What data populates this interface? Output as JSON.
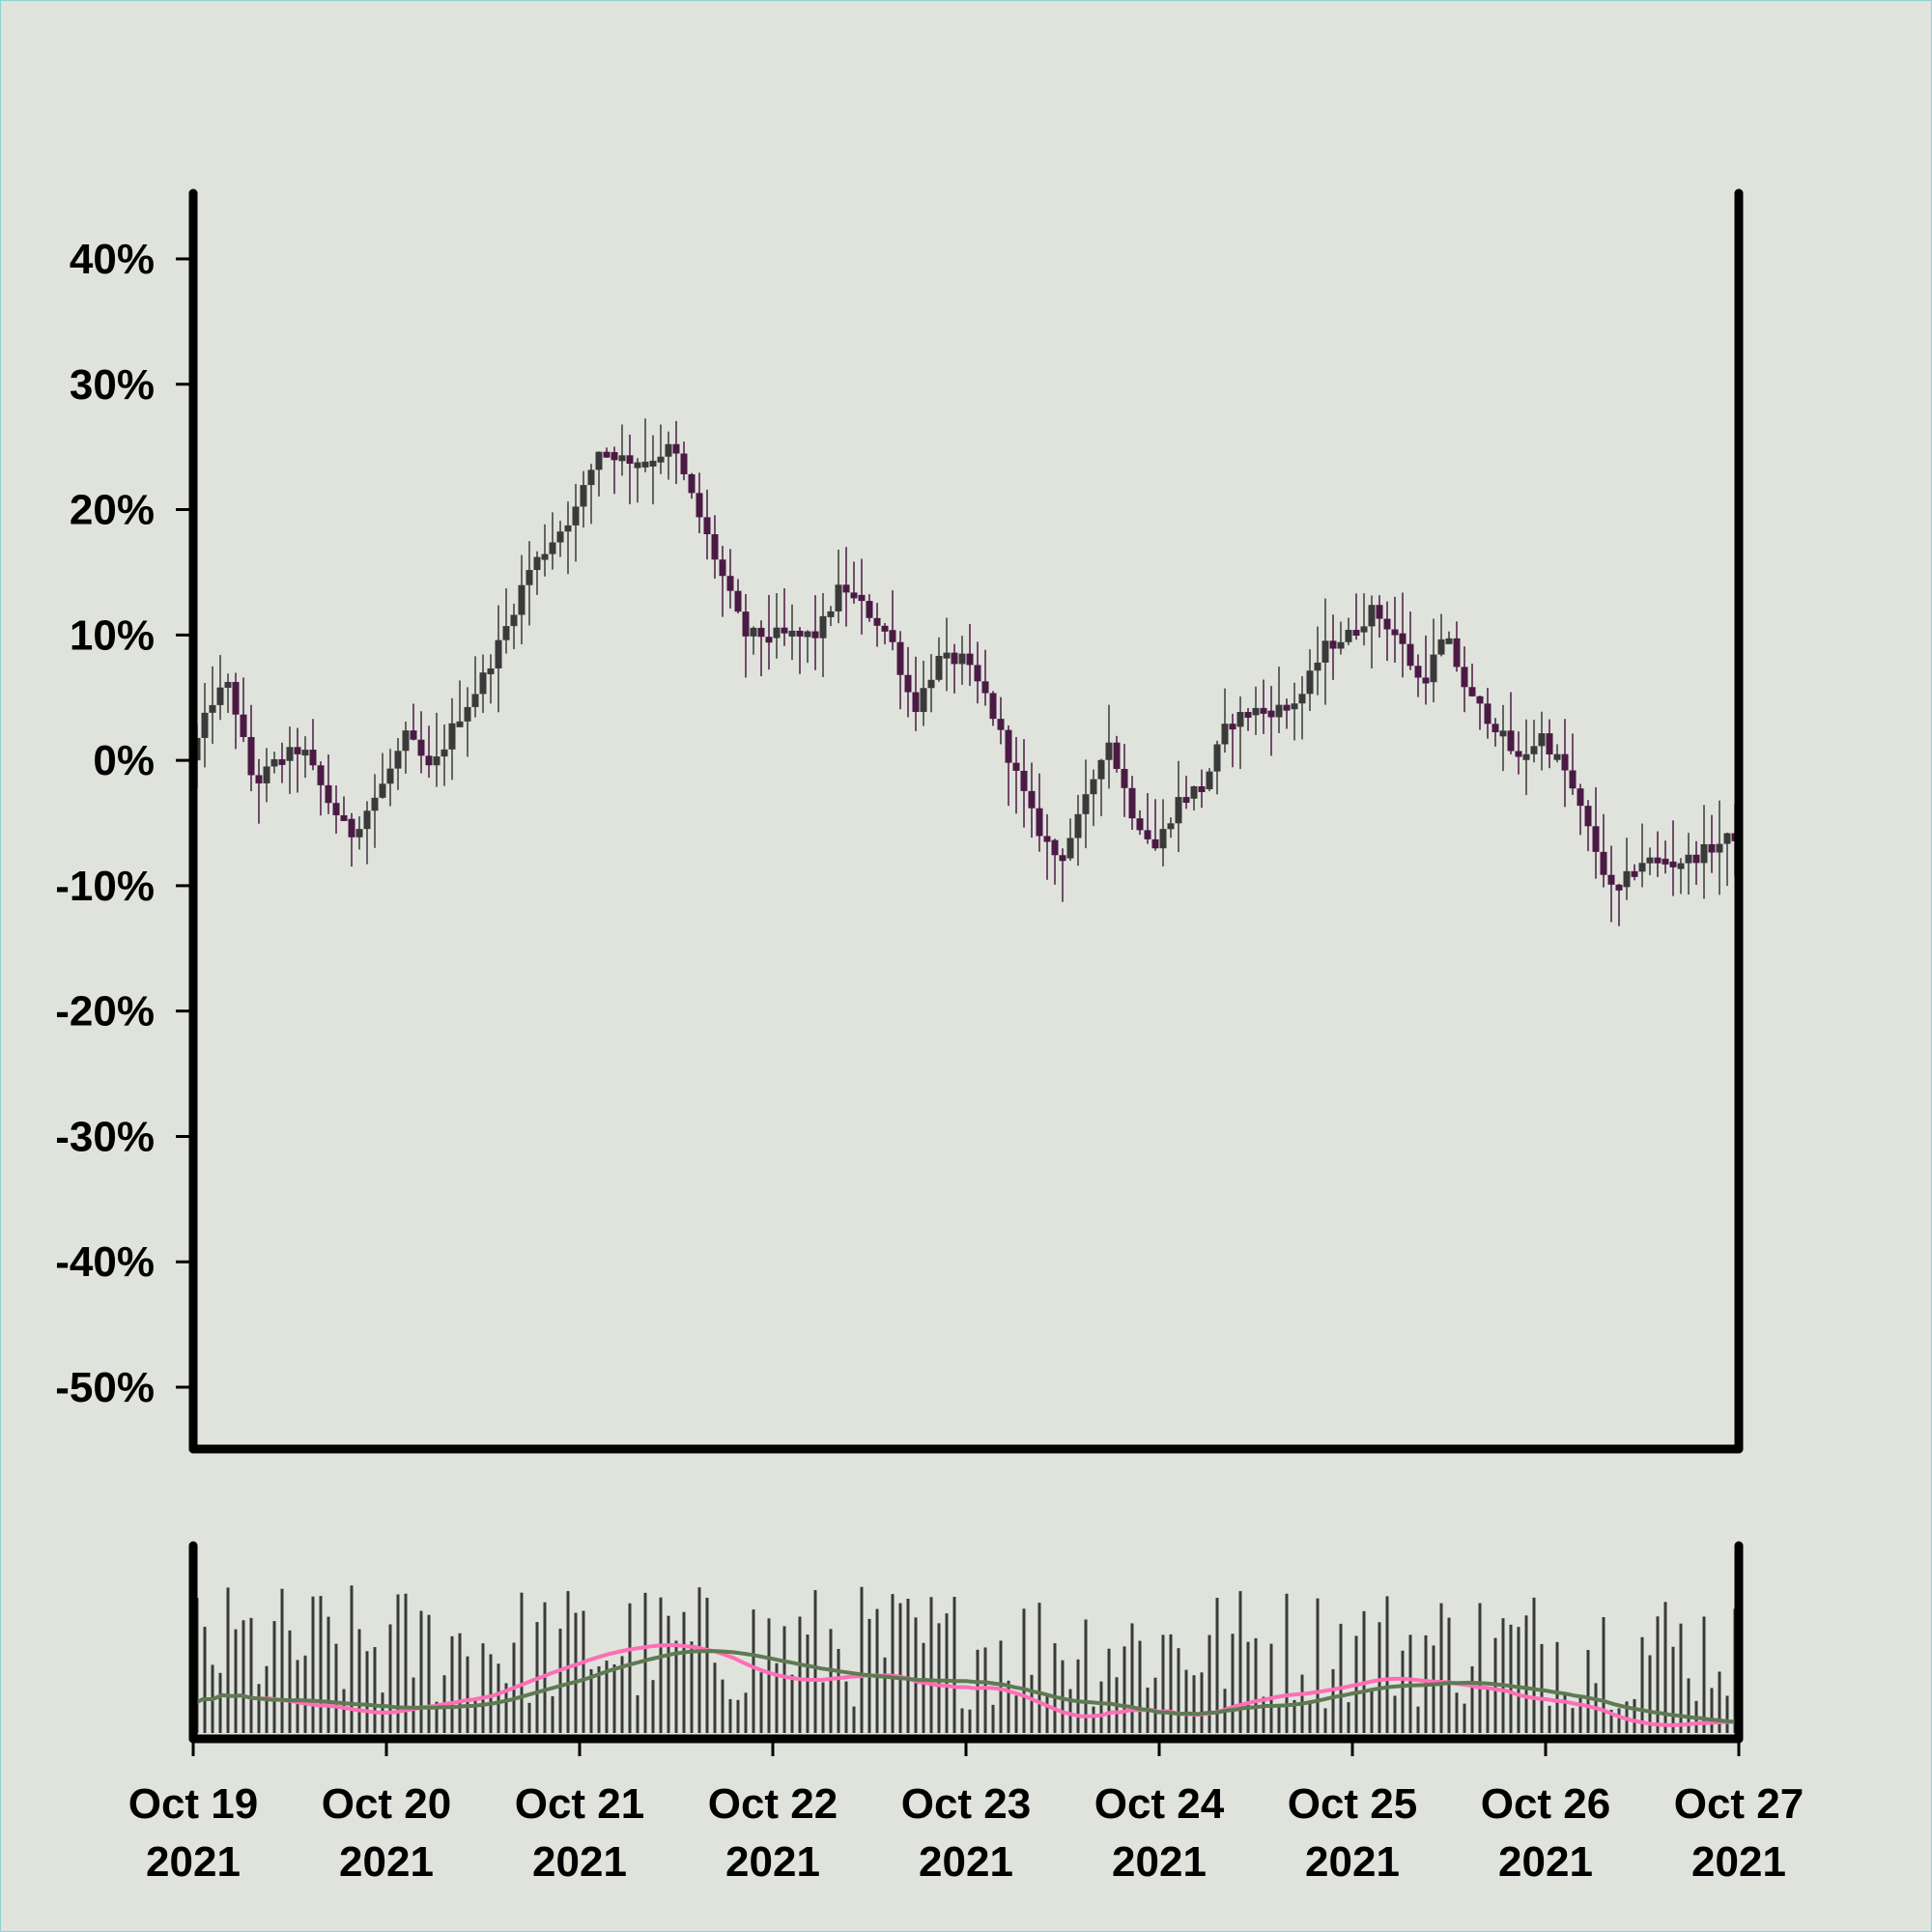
{
  "chart_data": {
    "type": "candlestick",
    "title": "",
    "xlabel": "",
    "ylabel": "",
    "ylim": [
      -55,
      40
    ],
    "y_ticks": [
      40,
      30,
      20,
      10,
      0,
      -10,
      -20,
      -30,
      -40,
      -50
    ],
    "y_tick_labels": [
      "40%",
      "30%",
      "20%",
      "10%",
      "0%",
      "-10%",
      "-20%",
      "-30%",
      "-40%",
      "-50%"
    ],
    "x_range": [
      "2021-10-19",
      "2021-10-27"
    ],
    "x_ticks": [
      {
        "date": "2021-10-19",
        "line1": "Oct 19",
        "line2": "2021"
      },
      {
        "date": "2021-10-20",
        "line1": "Oct 20",
        "line2": "2021"
      },
      {
        "date": "2021-10-21",
        "line1": "Oct 21",
        "line2": "2021"
      },
      {
        "date": "2021-10-22",
        "line1": "Oct 22",
        "line2": "2021"
      },
      {
        "date": "2021-10-23",
        "line1": "Oct 23",
        "line2": "2021"
      },
      {
        "date": "2021-10-24",
        "line1": "Oct 24",
        "line2": "2021"
      },
      {
        "date": "2021-10-25",
        "line1": "Oct 25",
        "line2": "2021"
      },
      {
        "date": "2021-10-26",
        "line1": "Oct 26",
        "line2": "2021"
      },
      {
        "date": "2021-10-27",
        "line1": "Oct 27",
        "line2": "2021"
      }
    ],
    "price_path": [
      [
        "2021-10-19 00:00",
        0
      ],
      [
        "2021-10-19 03:00",
        5
      ],
      [
        "2021-10-19 05:00",
        6
      ],
      [
        "2021-10-19 08:00",
        -2
      ],
      [
        "2021-10-19 11:00",
        0
      ],
      [
        "2021-10-19 14:00",
        1
      ],
      [
        "2021-10-19 17:00",
        -3
      ],
      [
        "2021-10-19 20:00",
        -6
      ],
      [
        "2021-10-20 00:00",
        -2
      ],
      [
        "2021-10-20 03:00",
        2
      ],
      [
        "2021-10-20 06:00",
        -1
      ],
      [
        "2021-10-20 09:00",
        3
      ],
      [
        "2021-10-20 12:00",
        6
      ],
      [
        "2021-10-20 15:00",
        10
      ],
      [
        "2021-10-20 18:00",
        15
      ],
      [
        "2021-10-21 00:00",
        20
      ],
      [
        "2021-10-21 03:00",
        25
      ],
      [
        "2021-10-21 06:00",
        24
      ],
      [
        "2021-10-21 09:00",
        24
      ],
      [
        "2021-10-21 12:00",
        25
      ],
      [
        "2021-10-21 15:00",
        20
      ],
      [
        "2021-10-21 18:00",
        15
      ],
      [
        "2021-10-21 21:00",
        10
      ],
      [
        "2021-10-22 00:00",
        10
      ],
      [
        "2021-10-22 06:00",
        10
      ],
      [
        "2021-10-22 09:00",
        14
      ],
      [
        "2021-10-22 12:00",
        12
      ],
      [
        "2021-10-22 15:00",
        10
      ],
      [
        "2021-10-22 18:00",
        4
      ],
      [
        "2021-10-22 21:00",
        8
      ],
      [
        "2021-10-23 00:00",
        8
      ],
      [
        "2021-10-23 03:00",
        5
      ],
      [
        "2021-10-23 06:00",
        0
      ],
      [
        "2021-10-23 09:00",
        -5
      ],
      [
        "2021-10-23 12:00",
        -8
      ],
      [
        "2021-10-23 15:00",
        -4
      ],
      [
        "2021-10-23 18:00",
        2
      ],
      [
        "2021-10-23 21:00",
        -4
      ],
      [
        "2021-10-24 00:00",
        -7
      ],
      [
        "2021-10-24 03:00",
        -3
      ],
      [
        "2021-10-24 06:00",
        -2
      ],
      [
        "2021-10-24 09:00",
        3
      ],
      [
        "2021-10-24 12:00",
        4
      ],
      [
        "2021-10-24 15:00",
        4
      ],
      [
        "2021-10-24 18:00",
        5
      ],
      [
        "2021-10-24 21:00",
        9
      ],
      [
        "2021-10-25 00:00",
        10
      ],
      [
        "2021-10-25 03:00",
        12
      ],
      [
        "2021-10-25 06:00",
        10
      ],
      [
        "2021-10-25 09:00",
        6
      ],
      [
        "2021-10-25 12:00",
        10
      ],
      [
        "2021-10-25 15:00",
        5
      ],
      [
        "2021-10-25 18:00",
        3
      ],
      [
        "2021-10-25 21:00",
        0
      ],
      [
        "2021-10-26 00:00",
        2
      ],
      [
        "2021-10-26 03:00",
        -1
      ],
      [
        "2021-10-26 06:00",
        -6
      ],
      [
        "2021-10-26 09:00",
        -11
      ],
      [
        "2021-10-26 12:00",
        -8
      ],
      [
        "2021-10-26 15:00",
        -8
      ],
      [
        "2021-10-26 18:00",
        -8
      ],
      [
        "2021-10-26 21:00",
        -7
      ],
      [
        "2021-10-27 00:00",
        -6
      ]
    ],
    "volume": {
      "n_bars": 200,
      "min": 0.15,
      "max": 0.97
    },
    "series": [
      {
        "name": "",
        "color": "#ff6eb4"
      },
      {
        "name": "",
        "color": "#5e7a52"
      }
    ],
    "candle_colors": {
      "up": "#3a3a3a",
      "down": "#4b1a44"
    },
    "grid": false,
    "legend": "none"
  }
}
